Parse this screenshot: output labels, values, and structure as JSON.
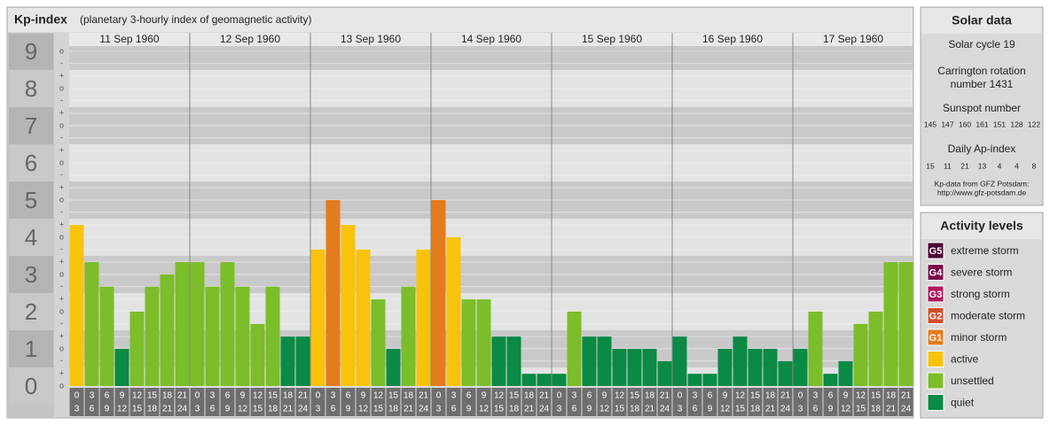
{
  "header": {
    "title": "Kp-index",
    "subtitle": "(planetary 3-hourly index of geomagnetic activity)"
  },
  "chart_data": {
    "type": "bar",
    "days": [
      "11 Sep 1960",
      "12 Sep 1960",
      "13 Sep 1960",
      "14 Sep 1960",
      "15 Sep 1960",
      "16 Sep 1960",
      "17 Sep 1960"
    ],
    "time_slots": [
      {
        "from": "0",
        "to": "3"
      },
      {
        "from": "3",
        "to": "6"
      },
      {
        "from": "6",
        "to": "9"
      },
      {
        "from": "9",
        "to": "12"
      },
      {
        "from": "12",
        "to": "15"
      },
      {
        "from": "15",
        "to": "18"
      },
      {
        "from": "18",
        "to": "21"
      },
      {
        "from": "21",
        "to": "24"
      }
    ],
    "values": [
      4.33,
      3.33,
      2.67,
      1,
      2,
      2.67,
      3,
      3.33,
      3.33,
      2.67,
      3.33,
      2.67,
      1.67,
      2.67,
      1.33,
      1.33,
      3.67,
      5,
      4.33,
      3.67,
      2.33,
      1,
      2.67,
      3.67,
      5,
      4,
      2.33,
      2.33,
      1.33,
      1.33,
      0.33,
      0.33,
      0.33,
      2,
      1.33,
      1.33,
      1,
      1,
      1,
      0.67,
      1.33,
      0.33,
      0.33,
      1,
      1.33,
      1,
      1,
      0.67,
      1,
      2,
      0.33,
      0.67,
      1.67,
      2,
      3.33,
      3.33
    ],
    "colors": [
      "#f9c30c",
      "#7cbd2a",
      "#7cbd2a",
      "#0a8a45",
      "#7cbd2a",
      "#7cbd2a",
      "#7cbd2a",
      "#7cbd2a",
      "#7cbd2a",
      "#7cbd2a",
      "#7cbd2a",
      "#7cbd2a",
      "#7cbd2a",
      "#7cbd2a",
      "#0a8a45",
      "#0a8a45",
      "#f9c30c",
      "#e37c1c",
      "#f9c30c",
      "#f9c30c",
      "#7cbd2a",
      "#0a8a45",
      "#7cbd2a",
      "#f9c30c",
      "#e37c1c",
      "#f9c30c",
      "#7cbd2a",
      "#7cbd2a",
      "#0a8a45",
      "#0a8a45",
      "#0a8a45",
      "#0a8a45",
      "#0a8a45",
      "#7cbd2a",
      "#0a8a45",
      "#0a8a45",
      "#0a8a45",
      "#0a8a45",
      "#0a8a45",
      "#0a8a45",
      "#0a8a45",
      "#0a8a45",
      "#0a8a45",
      "#0a8a45",
      "#0a8a45",
      "#0a8a45",
      "#0a8a45",
      "#0a8a45",
      "#0a8a45",
      "#7cbd2a",
      "#0a8a45",
      "#0a8a45",
      "#7cbd2a",
      "#7cbd2a",
      "#7cbd2a",
      "#7cbd2a"
    ],
    "ylim": [
      0,
      9.14
    ],
    "yticks": [
      0,
      1,
      2,
      3,
      4,
      5,
      6,
      7,
      8,
      9
    ],
    "ysubticks": [
      {
        "value": 0,
        "label": "o"
      },
      {
        "value": 0.33,
        "label": "+"
      },
      {
        "value": 0.67,
        "label": "-"
      },
      {
        "value": 1,
        "label": "o"
      },
      {
        "value": 1.33,
        "label": "+"
      },
      {
        "value": 1.67,
        "label": "-"
      },
      {
        "value": 2,
        "label": "o"
      },
      {
        "value": 2.33,
        "label": "+"
      },
      {
        "value": 2.67,
        "label": "-"
      },
      {
        "value": 3,
        "label": "o"
      },
      {
        "value": 3.33,
        "label": "+"
      },
      {
        "value": 3.67,
        "label": "-"
      },
      {
        "value": 4,
        "label": "o"
      },
      {
        "value": 4.33,
        "label": "+"
      },
      {
        "value": 4.67,
        "label": "-"
      },
      {
        "value": 5,
        "label": "o"
      },
      {
        "value": 5.33,
        "label": "+"
      },
      {
        "value": 5.67,
        "label": "-"
      },
      {
        "value": 6,
        "label": "o"
      },
      {
        "value": 6.33,
        "label": "+"
      },
      {
        "value": 6.67,
        "label": "-"
      },
      {
        "value": 7,
        "label": "o"
      },
      {
        "value": 7.33,
        "label": "+"
      },
      {
        "value": 7.67,
        "label": "-"
      },
      {
        "value": 8,
        "label": "o"
      },
      {
        "value": 8.33,
        "label": "+"
      },
      {
        "value": 8.67,
        "label": "-"
      },
      {
        "value": 9,
        "label": "o"
      }
    ],
    "grid": true
  },
  "sidebar": {
    "solar": {
      "title": "Solar data",
      "cycle": "Solar cycle 19",
      "carrington": [
        "Carrington rotation",
        "number 1431"
      ],
      "sunspot_title": "Sunspot number",
      "sunspot_values": [
        "145",
        "147",
        "160",
        "161",
        "151",
        "128",
        "122"
      ],
      "ap_title": "Daily Ap-index",
      "ap_values": [
        "15",
        "11",
        "21",
        "13",
        "4",
        "4",
        "8"
      ],
      "credit": [
        "Kp-data from GFZ Potsdam:",
        "http://www.gfz-potsdam.de"
      ]
    },
    "levels": {
      "title": "Activity levels",
      "items": [
        {
          "badge": "G5",
          "label": "extreme storm",
          "color": "#4a0030"
        },
        {
          "badge": "G4",
          "label": "severe storm",
          "color": "#7a0a4a"
        },
        {
          "badge": "G3",
          "label": "strong storm",
          "color": "#b0185e"
        },
        {
          "badge": "G2",
          "label": "moderate storm",
          "color": "#d0502a"
        },
        {
          "badge": "G1",
          "label": "minor storm",
          "color": "#e37c1c"
        },
        {
          "label": "active",
          "color": "#f9c30c"
        },
        {
          "label": "unsettled",
          "color": "#7cbd2a"
        },
        {
          "label": "quiet",
          "color": "#0a8a45"
        }
      ]
    }
  }
}
